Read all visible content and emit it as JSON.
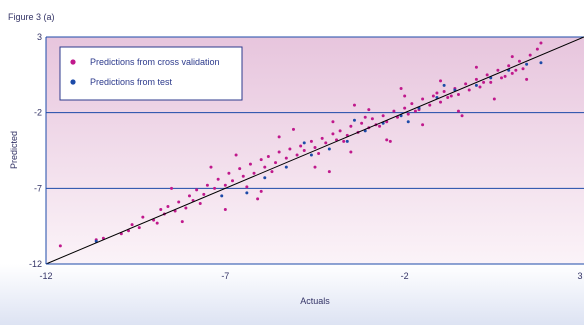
{
  "figure_label": "Figure 3 (a)",
  "colors": {
    "cv": "#c0188c",
    "test": "#1c4aa8",
    "axis": "#1c4aa8",
    "diagonal": "#000000",
    "band_top": "#e7c5dd",
    "band_bottom": "#fbf3f8"
  },
  "chart_data": {
    "type": "scatter",
    "title": "",
    "xlabel": "Actuals",
    "ylabel": "Predicted",
    "xlim": [
      -12,
      3
    ],
    "ylim": [
      -12,
      3
    ],
    "x_ticks": [
      "-12",
      "-7",
      "-2",
      "3"
    ],
    "y_ticks": [
      "3",
      "-2",
      "-7",
      "-12"
    ],
    "x_tick_values": [
      -12,
      -7,
      -2,
      3
    ],
    "y_tick_values": [
      3,
      -2,
      -7,
      -12
    ],
    "grid": "horizontal",
    "legend_position": "top-left",
    "reference_line": {
      "from": [
        -12,
        -12
      ],
      "to": [
        3,
        3
      ]
    },
    "series": [
      {
        "name": "Predictions from cross validation",
        "points": [
          [
            -11.6,
            -10.8
          ],
          [
            -10.6,
            -10.4
          ],
          [
            -10.4,
            -10.3
          ],
          [
            -9.9,
            -10.0
          ],
          [
            -9.6,
            -9.4
          ],
          [
            -9.4,
            -9.6
          ],
          [
            -9.3,
            -8.9
          ],
          [
            -9.0,
            -9.1
          ],
          [
            -8.8,
            -8.4
          ],
          [
            -8.7,
            -8.7
          ],
          [
            -8.6,
            -8.2
          ],
          [
            -8.4,
            -8.5
          ],
          [
            -8.3,
            -7.9
          ],
          [
            -8.1,
            -8.3
          ],
          [
            -8.0,
            -7.5
          ],
          [
            -7.9,
            -7.8
          ],
          [
            -7.8,
            -7.1
          ],
          [
            -7.6,
            -7.4
          ],
          [
            -7.5,
            -6.8
          ],
          [
            -7.3,
            -7.0
          ],
          [
            -7.2,
            -6.4
          ],
          [
            -7.0,
            -6.8
          ],
          [
            -6.9,
            -6.0
          ],
          [
            -6.8,
            -6.5
          ],
          [
            -6.6,
            -5.7
          ],
          [
            -6.5,
            -6.2
          ],
          [
            -6.3,
            -5.4
          ],
          [
            -6.2,
            -6.0
          ],
          [
            -6.0,
            -5.1
          ],
          [
            -5.9,
            -5.6
          ],
          [
            -5.8,
            -4.9
          ],
          [
            -5.6,
            -5.3
          ],
          [
            -5.5,
            -4.6
          ],
          [
            -5.3,
            -5.0
          ],
          [
            -5.2,
            -4.4
          ],
          [
            -5.0,
            -4.8
          ],
          [
            -4.9,
            -4.2
          ],
          [
            -4.8,
            -4.5
          ],
          [
            -4.6,
            -3.9
          ],
          [
            -4.5,
            -4.3
          ],
          [
            -4.3,
            -3.7
          ],
          [
            -4.2,
            -4.0
          ],
          [
            -4.0,
            -3.4
          ],
          [
            -3.9,
            -3.8
          ],
          [
            -3.8,
            -3.2
          ],
          [
            -3.6,
            -3.5
          ],
          [
            -3.5,
            -2.9
          ],
          [
            -3.3,
            -3.3
          ],
          [
            -3.2,
            -2.7
          ],
          [
            -3.0,
            -3.0
          ],
          [
            -2.9,
            -2.4
          ],
          [
            -2.8,
            -2.8
          ],
          [
            -2.6,
            -2.2
          ],
          [
            -2.5,
            -2.6
          ],
          [
            -2.3,
            -1.9
          ],
          [
            -2.2,
            -2.3
          ],
          [
            -2.0,
            -1.7
          ],
          [
            -1.9,
            -2.1
          ],
          [
            -1.8,
            -1.4
          ],
          [
            -1.6,
            -1.8
          ],
          [
            -1.5,
            -1.1
          ],
          [
            -1.3,
            -1.5
          ],
          [
            -1.2,
            -0.9
          ],
          [
            -1.0,
            -1.3
          ],
          [
            -0.9,
            -0.6
          ],
          [
            -0.8,
            -1.0
          ],
          [
            -0.6,
            -0.4
          ],
          [
            -0.5,
            -0.8
          ],
          [
            -0.3,
            -0.1
          ],
          [
            -0.2,
            -0.5
          ],
          [
            0.0,
            0.2
          ],
          [
            0.1,
            -0.3
          ],
          [
            0.3,
            0.5
          ],
          [
            0.4,
            0.0
          ],
          [
            0.6,
            0.8
          ],
          [
            0.7,
            0.3
          ],
          [
            0.9,
            1.1
          ],
          [
            1.0,
            0.6
          ],
          [
            1.2,
            1.4
          ],
          [
            1.3,
            0.9
          ],
          [
            1.5,
            1.8
          ],
          [
            1.7,
            2.2
          ],
          [
            1.8,
            2.6
          ],
          [
            -8.5,
            -7.0
          ],
          [
            -7.0,
            -8.4
          ],
          [
            -6.0,
            -7.2
          ],
          [
            -5.5,
            -3.6
          ],
          [
            -4.5,
            -5.6
          ],
          [
            -4.0,
            -2.6
          ],
          [
            -3.5,
            -4.6
          ],
          [
            -3.0,
            -1.8
          ],
          [
            -2.5,
            -3.8
          ],
          [
            -2.0,
            -0.9
          ],
          [
            -1.5,
            -2.8
          ],
          [
            -1.0,
            0.1
          ],
          [
            -0.5,
            -1.9
          ],
          [
            0.0,
            1.0
          ],
          [
            0.5,
            -1.1
          ],
          [
            1.0,
            1.7
          ],
          [
            -9.7,
            -9.8
          ],
          [
            -8.9,
            -9.3
          ],
          [
            -7.7,
            -8.0
          ],
          [
            -6.4,
            -6.9
          ],
          [
            -5.7,
            -5.9
          ],
          [
            -4.4,
            -4.7
          ],
          [
            -3.7,
            -3.9
          ],
          [
            -2.7,
            -2.9
          ],
          [
            -1.7,
            -1.9
          ],
          [
            -0.7,
            -0.9
          ],
          [
            0.2,
            0.0
          ],
          [
            1.1,
            0.8
          ],
          [
            -6.7,
            -4.8
          ],
          [
            -7.4,
            -5.6
          ],
          [
            -5.1,
            -3.1
          ],
          [
            -3.4,
            -1.5
          ],
          [
            -2.1,
            -0.4
          ],
          [
            -8.2,
            -9.2
          ],
          [
            -6.1,
            -7.7
          ],
          [
            -4.1,
            -5.9
          ],
          [
            -2.4,
            -3.9
          ],
          [
            -0.4,
            -2.2
          ],
          [
            1.4,
            0.2
          ],
          [
            -3.1,
            -2.3
          ],
          [
            -1.1,
            -0.7
          ],
          [
            0.8,
            0.4
          ]
        ]
      },
      {
        "name": "Predictions from test",
        "points": [
          [
            -10.6,
            -10.5
          ],
          [
            -7.1,
            -7.5
          ],
          [
            -6.4,
            -7.3
          ],
          [
            -5.9,
            -6.3
          ],
          [
            -5.3,
            -5.6
          ],
          [
            -4.6,
            -4.8
          ],
          [
            -4.1,
            -4.4
          ],
          [
            -3.6,
            -3.9
          ],
          [
            -3.1,
            -3.2
          ],
          [
            -2.6,
            -2.7
          ],
          [
            -2.1,
            -2.2
          ],
          [
            -1.6,
            -1.7
          ],
          [
            -1.1,
            -1.0
          ],
          [
            -0.6,
            -0.5
          ],
          [
            0.0,
            -0.2
          ],
          [
            0.4,
            0.3
          ],
          [
            0.9,
            0.8
          ],
          [
            1.4,
            1.2
          ],
          [
            1.8,
            1.3
          ],
          [
            -3.4,
            -2.5
          ],
          [
            -1.9,
            -2.6
          ],
          [
            -0.9,
            -0.2
          ],
          [
            -4.8,
            -4.0
          ]
        ]
      }
    ]
  }
}
